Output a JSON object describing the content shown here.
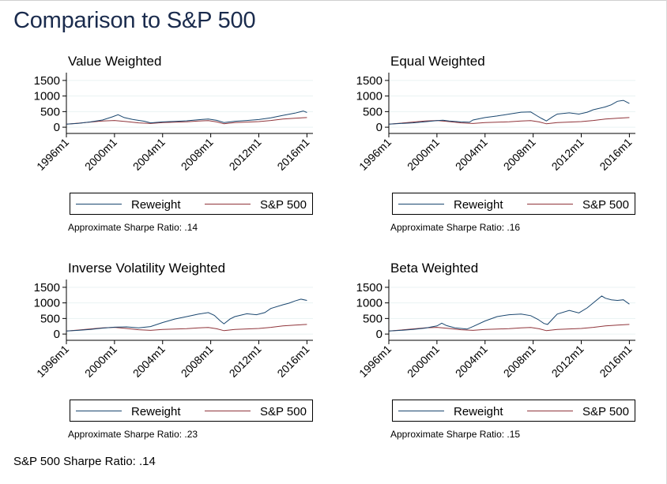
{
  "title": "Comparison to S&P 500",
  "footer": "S&P 500 Sharpe Ratio: .14",
  "legend": {
    "reweight": "Reweight",
    "sp500": "S&P 500"
  },
  "colors": {
    "reweight": "#1a476f",
    "sp500": "#90353b",
    "title": "#1a2b4d"
  },
  "chart_data": [
    {
      "type": "line",
      "title": "Value Weighted",
      "sharpe_text": "Approximate Sharpe Ratio: .14",
      "x_ticks": [
        "1996m1",
        "2000m1",
        "2004m1",
        "2008m1",
        "2012m1",
        "2016m1"
      ],
      "y_ticks": [
        0,
        500,
        1000,
        1500
      ],
      "ylim": [
        -200,
        1750
      ],
      "xlim": [
        1996,
        2016.5
      ],
      "grid": true,
      "legend_position": "bottom",
      "series": [
        {
          "name": "Reweight",
          "x": [
            1996,
            1997,
            1998,
            1999,
            1999.8,
            2000.3,
            2000.8,
            2001.5,
            2002.5,
            2003,
            2004,
            2005,
            2006,
            2007,
            2007.8,
            2008.5,
            2009.1,
            2010,
            2011,
            2012,
            2013,
            2014,
            2015,
            2015.7,
            2016
          ],
          "values": [
            100,
            125,
            170,
            230,
            330,
            400,
            310,
            250,
            190,
            140,
            170,
            185,
            205,
            240,
            260,
            220,
            150,
            190,
            215,
            245,
            300,
            380,
            450,
            520,
            470
          ]
        },
        {
          "name": "S&P 500",
          "x": [
            1996,
            1997,
            1998,
            1999,
            2000,
            2001,
            2002,
            2003,
            2004,
            2005,
            2006,
            2007,
            2007.8,
            2008.5,
            2009.1,
            2010,
            2011,
            2012,
            2013,
            2014,
            2015,
            2016
          ],
          "values": [
            100,
            130,
            165,
            200,
            215,
            180,
            140,
            120,
            150,
            160,
            175,
            200,
            210,
            170,
            110,
            150,
            165,
            180,
            215,
            260,
            290,
            310
          ]
        }
      ]
    },
    {
      "type": "line",
      "title": "Equal Weighted",
      "sharpe_text": "Approximate Sharpe Ratio: .16",
      "x_ticks": [
        "1996m1",
        "2000m1",
        "2004m1",
        "2008m1",
        "2012m1",
        "2016m1"
      ],
      "y_ticks": [
        0,
        500,
        1000,
        1500
      ],
      "ylim": [
        -200,
        1750
      ],
      "xlim": [
        1996,
        2016.5
      ],
      "grid": true,
      "legend_position": "bottom",
      "series": [
        {
          "name": "Reweight",
          "x": [
            1996,
            1997,
            1998,
            1999,
            2000,
            2000.5,
            2001,
            2002,
            2002.7,
            2003,
            2004,
            2005,
            2006,
            2007,
            2007.8,
            2008.3,
            2008.7,
            2009.1,
            2009.6,
            2010,
            2011,
            2011.8,
            2012.5,
            2013,
            2014,
            2014.5,
            2015,
            2015.5,
            2016
          ],
          "values": [
            100,
            120,
            140,
            175,
            210,
            225,
            200,
            170,
            160,
            230,
            310,
            360,
            420,
            480,
            490,
            370,
            280,
            200,
            330,
            420,
            460,
            420,
            480,
            560,
            650,
            720,
            830,
            860,
            760
          ]
        },
        {
          "name": "S&P 500",
          "x": [
            1996,
            1997,
            1998,
            1999,
            2000,
            2001,
            2002,
            2003,
            2004,
            2005,
            2006,
            2007,
            2007.8,
            2008.5,
            2009.1,
            2010,
            2011,
            2012,
            2013,
            2014,
            2015,
            2016
          ],
          "values": [
            100,
            130,
            165,
            200,
            215,
            180,
            140,
            120,
            150,
            160,
            175,
            200,
            210,
            170,
            110,
            150,
            165,
            180,
            215,
            260,
            290,
            310
          ]
        }
      ]
    },
    {
      "type": "line",
      "title": "Inverse Volatility Weighted",
      "sharpe_text": "Approximate Sharpe Ratio: .23",
      "x_ticks": [
        "1996m1",
        "2000m1",
        "2004m1",
        "2008m1",
        "2012m1",
        "2016m1"
      ],
      "y_ticks": [
        0,
        500,
        1000,
        1500
      ],
      "ylim": [
        -200,
        1750
      ],
      "xlim": [
        1996,
        2016.5
      ],
      "grid": true,
      "legend_position": "bottom",
      "series": [
        {
          "name": "Reweight",
          "x": [
            1996,
            1997,
            1998,
            1999,
            2000,
            2001,
            2002,
            2003,
            2004,
            2005,
            2006,
            2007,
            2007.8,
            2008.3,
            2008.8,
            2009.1,
            2009.6,
            2010,
            2011,
            2011.8,
            2012.5,
            2013,
            2014,
            2014.5,
            2015,
            2015.5,
            2016
          ],
          "values": [
            100,
            120,
            150,
            190,
            220,
            230,
            200,
            240,
            370,
            480,
            560,
            640,
            690,
            600,
            420,
            330,
            480,
            560,
            650,
            620,
            690,
            820,
            940,
            990,
            1060,
            1120,
            1080
          ]
        },
        {
          "name": "S&P 500",
          "x": [
            1996,
            1997,
            1998,
            1999,
            2000,
            2001,
            2002,
            2003,
            2004,
            2005,
            2006,
            2007,
            2007.8,
            2008.5,
            2009.1,
            2010,
            2011,
            2012,
            2013,
            2014,
            2015,
            2016
          ],
          "values": [
            100,
            130,
            165,
            200,
            215,
            180,
            140,
            120,
            150,
            160,
            175,
            200,
            210,
            170,
            110,
            150,
            165,
            180,
            215,
            260,
            290,
            310
          ]
        }
      ]
    },
    {
      "type": "line",
      "title": "Beta Weighted",
      "sharpe_text": "Approximate Sharpe Ratio: .15",
      "x_ticks": [
        "1996m1",
        "2000m1",
        "2004m1",
        "2008m1",
        "2012m1",
        "2016m1"
      ],
      "y_ticks": [
        0,
        500,
        1000,
        1500
      ],
      "ylim": [
        -200,
        1750
      ],
      "xlim": [
        1996,
        2016.5
      ],
      "grid": true,
      "legend_position": "bottom",
      "series": [
        {
          "name": "Reweight",
          "x": [
            1996,
            1997,
            1998,
            1999,
            2000,
            2000.4,
            2000.8,
            2001.5,
            2002.5,
            2003,
            2004,
            2005,
            2006,
            2007,
            2007.8,
            2008.4,
            2008.9,
            2009.2,
            2009.7,
            2010,
            2011,
            2011.8,
            2012.5,
            2013,
            2013.7,
            2014,
            2014.5,
            2015,
            2015.5,
            2016
          ],
          "values": [
            100,
            120,
            150,
            190,
            260,
            350,
            270,
            200,
            160,
            240,
            420,
            560,
            620,
            640,
            590,
            470,
            340,
            310,
            520,
            640,
            760,
            680,
            840,
            1000,
            1220,
            1150,
            1100,
            1080,
            1100,
            960
          ]
        },
        {
          "name": "S&P 500",
          "x": [
            1996,
            1997,
            1998,
            1999,
            2000,
            2001,
            2002,
            2003,
            2004,
            2005,
            2006,
            2007,
            2007.8,
            2008.5,
            2009.1,
            2010,
            2011,
            2012,
            2013,
            2014,
            2015,
            2016
          ],
          "values": [
            100,
            130,
            165,
            200,
            215,
            180,
            140,
            120,
            150,
            160,
            175,
            200,
            210,
            170,
            110,
            150,
            165,
            180,
            215,
            260,
            290,
            310
          ]
        }
      ]
    }
  ]
}
